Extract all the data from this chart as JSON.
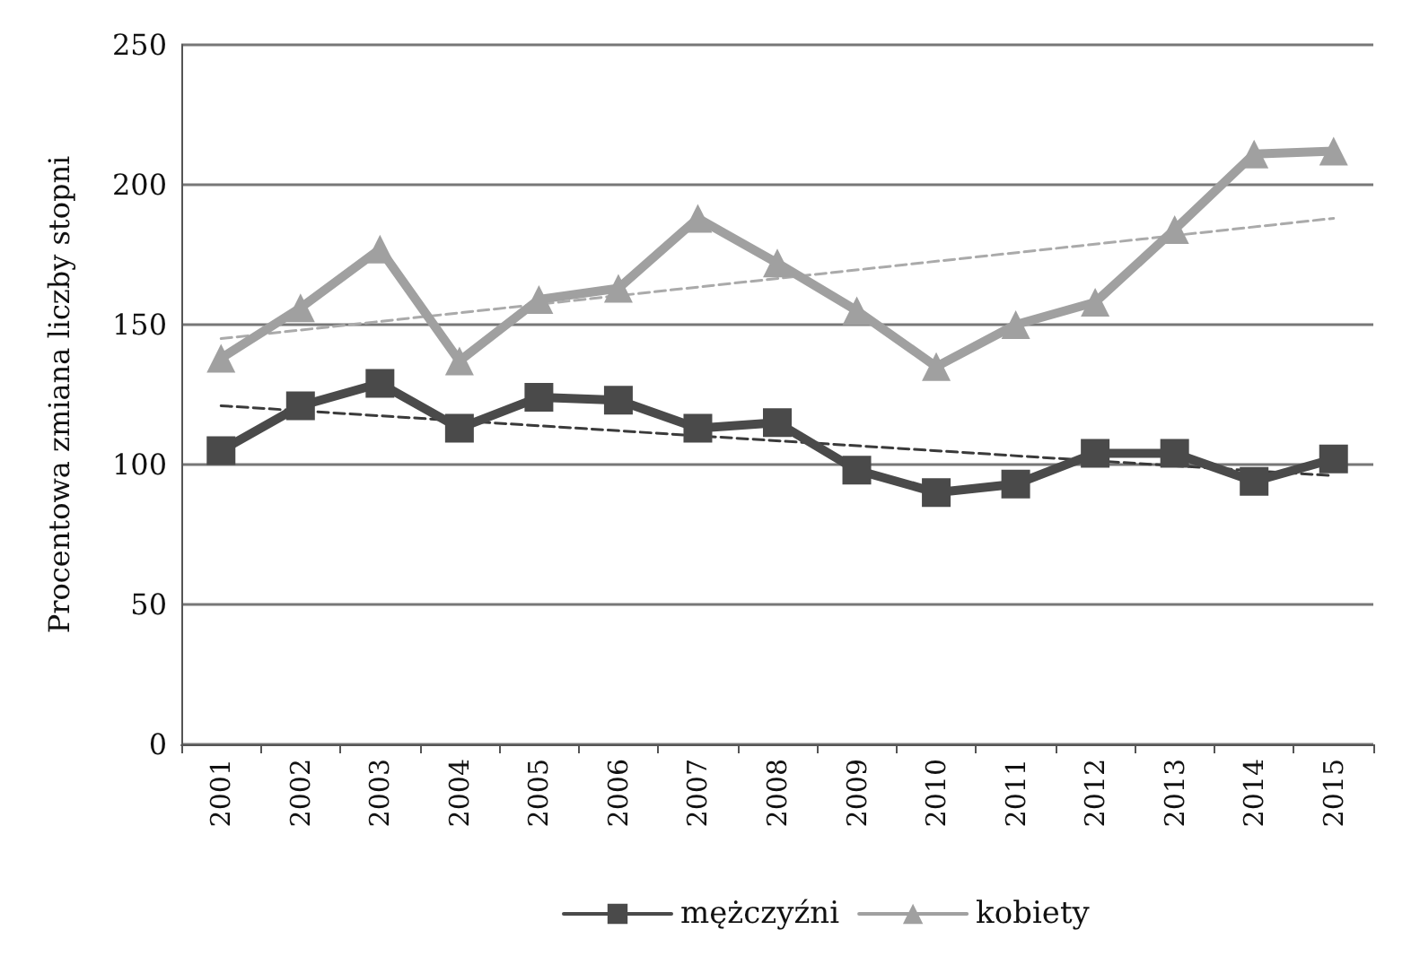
{
  "chart_data": {
    "type": "line",
    "ylabel": "Procentowa zmiana liczby stopni",
    "categories": [
      "2001",
      "2002",
      "2003",
      "2004",
      "2005",
      "2006",
      "2007",
      "2008",
      "2009",
      "2010",
      "2011",
      "2012",
      "2013",
      "2014",
      "2015"
    ],
    "series": [
      {
        "name": "mężczyźni",
        "color": "#4a4a4a",
        "marker": "square",
        "values": [
          105,
          121,
          129,
          113,
          124,
          123,
          113,
          115,
          98,
          90,
          93,
          104,
          104,
          94,
          102
        ]
      },
      {
        "name": "kobiety",
        "color": "#a0a0a0",
        "marker": "triangle",
        "values": [
          138,
          156,
          177,
          137,
          159,
          163,
          188,
          172,
          155,
          135,
          150,
          158,
          184,
          211,
          212
        ]
      },
      {
        "type": "line",
        "color": "#3a3a3a",
        "marker": "none",
        "line_style": "dashed",
        "values": [
          121,
          null,
          null,
          null,
          null,
          null,
          null,
          null,
          null,
          null,
          null,
          null,
          null,
          null,
          96
        ]
      },
      {
        "type": "line",
        "color": "#aaaaaa",
        "marker": "none",
        "line_style": "dashed",
        "values": [
          145,
          null,
          null,
          null,
          null,
          null,
          null,
          null,
          null,
          null,
          null,
          null,
          null,
          null,
          188
        ]
      }
    ],
    "ylim": [
      0,
      250
    ],
    "yticks": [
      0,
      50,
      100,
      150,
      200,
      250
    ],
    "grid": "y",
    "legend": "bottom"
  }
}
